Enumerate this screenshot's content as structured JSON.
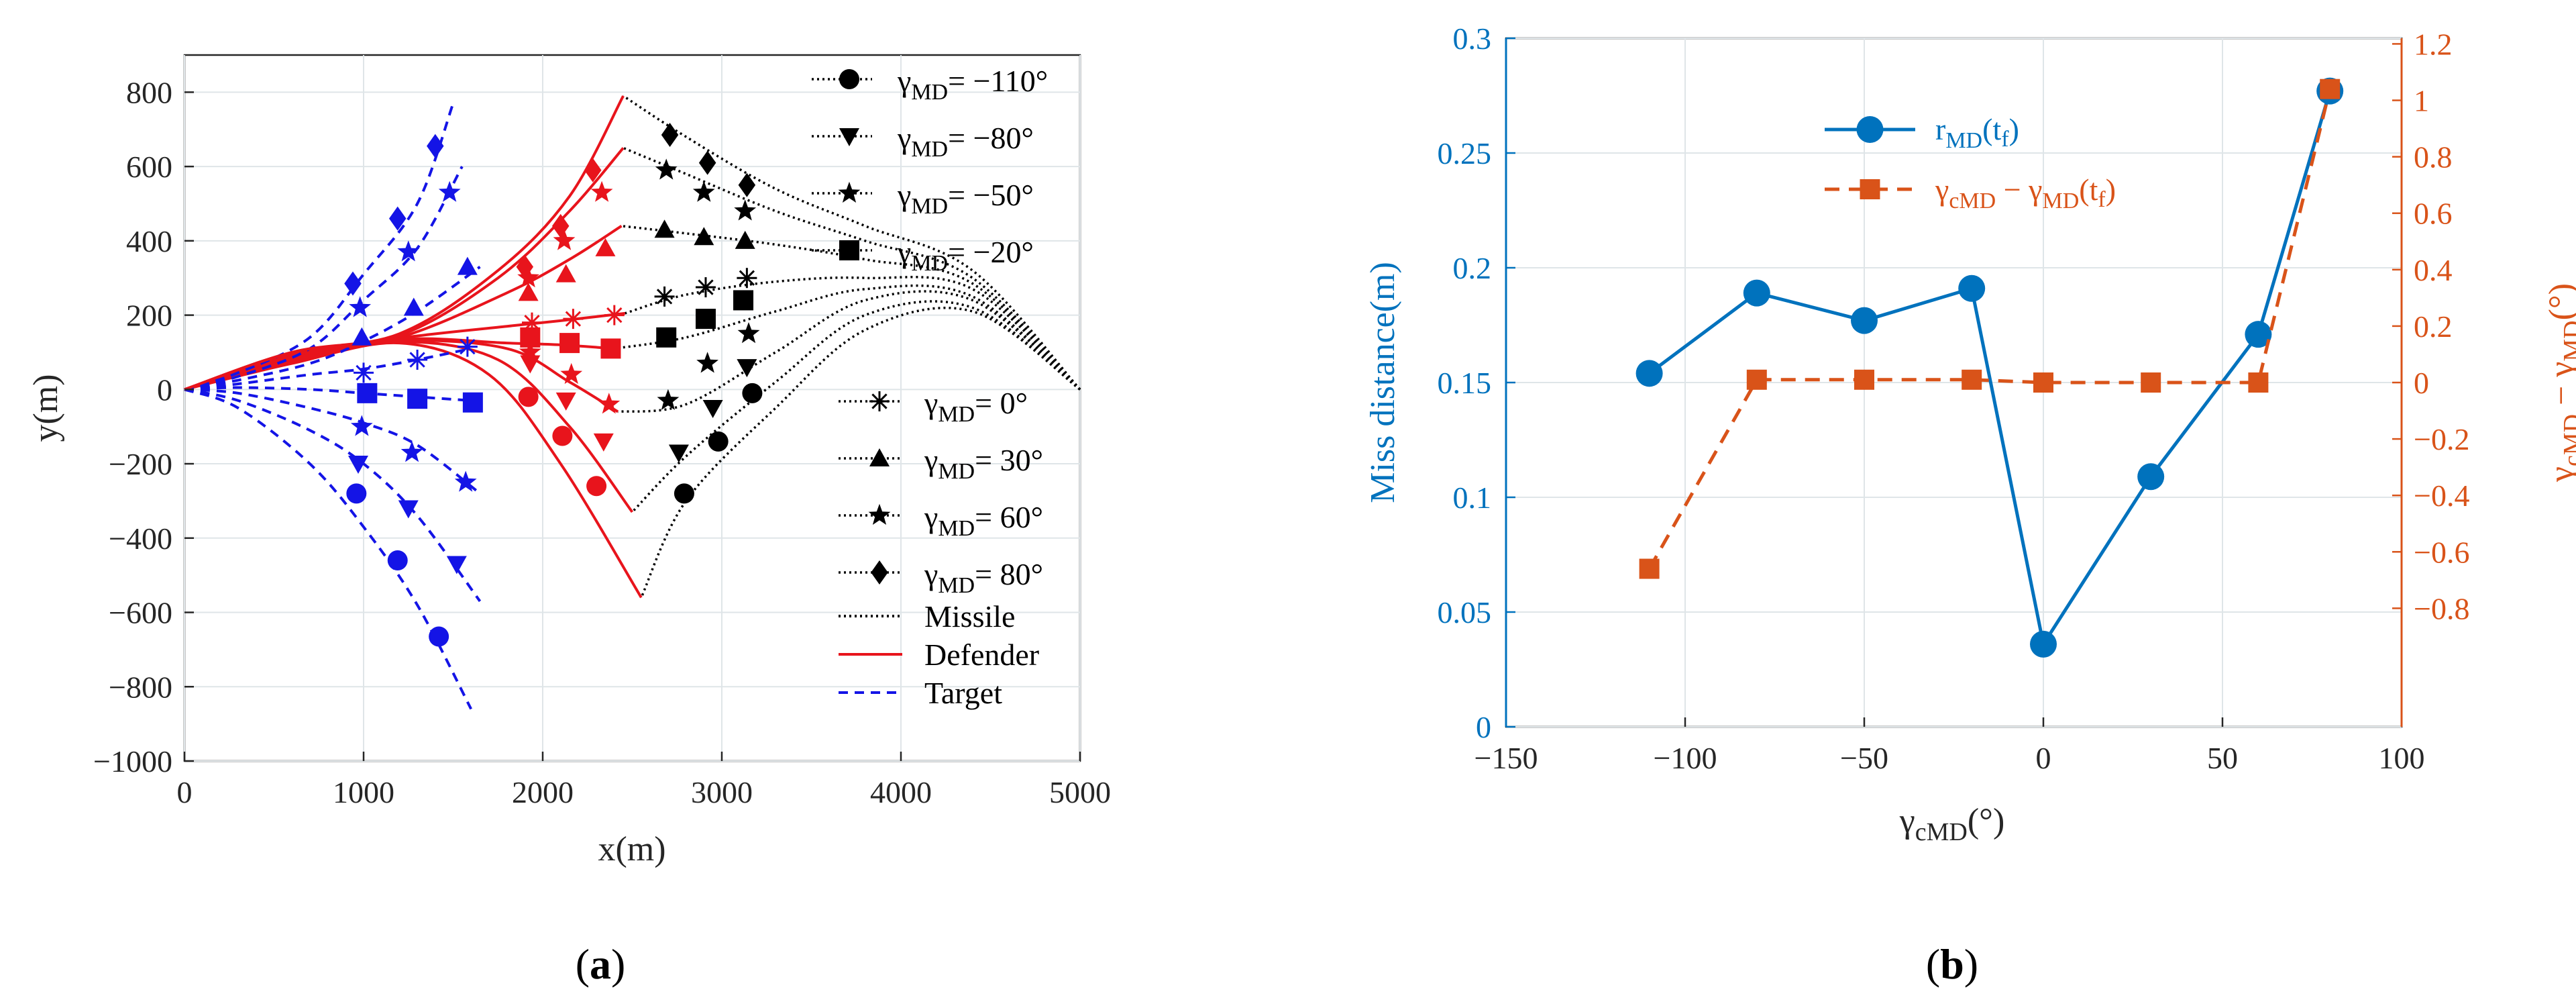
{
  "chart_data": [
    {
      "panel": "(a)",
      "type": "line",
      "xlabel": "x(m)",
      "ylabel": "y(m)",
      "xlim": [
        0,
        5000
      ],
      "ylim": [
        -1000,
        900
      ],
      "xticks": [
        "0",
        "1000",
        "2000",
        "3000",
        "4000",
        "5000"
      ],
      "yticks": [
        "−1000",
        "−800",
        "−600",
        "−400",
        "−200",
        "0",
        "200",
        "400",
        "600",
        "800"
      ],
      "legend": [
        "γMD= −110°",
        "γMD= −80°",
        "γMD= −50°",
        "γMD= −20°",
        "γMD= 0°",
        "γMD= 30°",
        "γMD= 60°",
        "γMD= 80°",
        "Missile",
        "Defender",
        "Target"
      ],
      "series": [
        {
          "name": "γMD= −110°",
          "marker": "circle",
          "missile": [
            [
              5000,
              0
            ],
            [
              4400,
              210
            ],
            [
              3800,
              160
            ],
            [
              3300,
              -50
            ],
            [
              2800,
              -300
            ],
            [
              2550,
              -560
            ]
          ],
          "defender": [
            [
              0,
              0
            ],
            [
              600,
              70
            ],
            [
              1200,
              125
            ],
            [
              1700,
              40
            ],
            [
              2100,
              -200
            ],
            [
              2550,
              -560
            ]
          ],
          "target": [
            [
              0,
              0
            ],
            [
              300,
              -50
            ],
            [
              700,
              -200
            ],
            [
              1000,
              -370
            ],
            [
              1300,
              -580
            ],
            [
              1600,
              -860
            ]
          ],
          "mk_missile": [
            [
              3170,
              -10
            ],
            [
              2980,
              -140
            ],
            [
              2790,
              -280
            ]
          ],
          "mk_defender": [
            [
              1920,
              -20
            ],
            [
              2110,
              -125
            ],
            [
              2300,
              -260
            ]
          ],
          "mk_target": [
            [
              960,
              -280
            ],
            [
              1190,
              -460
            ],
            [
              1420,
              -665
            ]
          ]
        },
        {
          "name": "γMD= −80°",
          "marker": "triangle-down",
          "missile": [
            [
              5000,
              0
            ],
            [
              4400,
              220
            ],
            [
              3800,
              200
            ],
            [
              3300,
              20
            ],
            [
              2800,
              -180
            ],
            [
              2500,
              -330
            ]
          ],
          "defender": [
            [
              0,
              0
            ],
            [
              600,
              75
            ],
            [
              1200,
              128
            ],
            [
              1750,
              80
            ],
            [
              2150,
              -100
            ],
            [
              2500,
              -330
            ]
          ],
          "target": [
            [
              0,
              0
            ],
            [
              300,
              -30
            ],
            [
              700,
              -110
            ],
            [
              1000,
              -200
            ],
            [
              1300,
              -340
            ],
            [
              1650,
              -570
            ]
          ],
          "mk_missile": [
            [
              3140,
              60
            ],
            [
              2950,
              -50
            ],
            [
              2760,
              -170
            ]
          ],
          "mk_defender": [
            [
              1930,
              70
            ],
            [
              2130,
              -30
            ],
            [
              2340,
              -140
            ]
          ],
          "mk_target": [
            [
              970,
              -200
            ],
            [
              1250,
              -320
            ],
            [
              1520,
              -470
            ]
          ]
        },
        {
          "name": "γMD= −50°",
          "marker": "star",
          "missile": [
            [
              5000,
              0
            ],
            [
              4400,
              240
            ],
            [
              3800,
              240
            ],
            [
              3300,
              100
            ],
            [
              2800,
              -40
            ],
            [
              2420,
              -60
            ]
          ],
          "defender": [
            [
              0,
              0
            ],
            [
              600,
              80
            ],
            [
              1200,
              130
            ],
            [
              1800,
              110
            ],
            [
              2150,
              20
            ],
            [
              2420,
              -60
            ]
          ],
          "target": [
            [
              0,
              0
            ],
            [
              300,
              -10
            ],
            [
              700,
              -50
            ],
            [
              1000,
              -90
            ],
            [
              1300,
              -150
            ],
            [
              1650,
              -280
            ]
          ],
          "mk_missile": [
            [
              3150,
              150
            ],
            [
              2920,
              70
            ],
            [
              2700,
              -30
            ]
          ],
          "mk_defender": [
            [
              1930,
              100
            ],
            [
              2160,
              40
            ],
            [
              2370,
              -40
            ]
          ],
          "mk_target": [
            [
              990,
              -100
            ],
            [
              1270,
              -170
            ],
            [
              1570,
              -250
            ]
          ]
        },
        {
          "name": "γMD= −20°",
          "marker": "square",
          "missile": [
            [
              5000,
              0
            ],
            [
              4400,
              250
            ],
            [
              3800,
              270
            ],
            [
              3300,
              210
            ],
            [
              2800,
              140
            ],
            [
              2400,
              110
            ]
          ],
          "defender": [
            [
              0,
              0
            ],
            [
              600,
              85
            ],
            [
              1200,
              135
            ],
            [
              1800,
              125
            ],
            [
              2100,
              120
            ],
            [
              2400,
              110
            ]
          ],
          "target": [
            [
              0,
              0
            ],
            [
              300,
              5
            ],
            [
              700,
              0
            ],
            [
              1000,
              -10
            ],
            [
              1300,
              -20
            ],
            [
              1600,
              -30
            ]
          ],
          "mk_missile": [
            [
              3120,
              240
            ],
            [
              2910,
              190
            ],
            [
              2690,
              140
            ]
          ],
          "mk_defender": [
            [
              1930,
              140
            ],
            [
              2150,
              125
            ],
            [
              2380,
              110
            ]
          ],
          "mk_target": [
            [
              1020,
              -10
            ],
            [
              1300,
              -25
            ],
            [
              1610,
              -35
            ]
          ]
        },
        {
          "name": "γMD= 0°",
          "marker": "asterisk",
          "missile": [
            [
              5000,
              0
            ],
            [
              4400,
              270
            ],
            [
              3800,
              300
            ],
            [
              3300,
              290
            ],
            [
              2800,
              255
            ],
            [
              2460,
              205
            ]
          ],
          "defender": [
            [
              0,
              0
            ],
            [
              600,
              90
            ],
            [
              1200,
              138
            ],
            [
              1800,
              170
            ],
            [
              2100,
              185
            ],
            [
              2460,
              205
            ]
          ],
          "target": [
            [
              0,
              0
            ],
            [
              300,
              15
            ],
            [
              700,
              40
            ],
            [
              1000,
              55
            ],
            [
              1300,
              80
            ],
            [
              1600,
              110
            ]
          ],
          "mk_missile": [
            [
              3140,
              300
            ],
            [
              2910,
              275
            ],
            [
              2680,
              250
            ]
          ],
          "mk_defender": [
            [
              1940,
              180
            ],
            [
              2170,
              190
            ],
            [
              2400,
              200
            ]
          ],
          "mk_target": [
            [
              1000,
              45
            ],
            [
              1300,
              80
            ],
            [
              1580,
              115
            ]
          ]
        },
        {
          "name": "γMD= 30°",
          "marker": "triangle-up",
          "missile": [
            [
              5000,
              0
            ],
            [
              4400,
              285
            ],
            [
              3800,
              350
            ],
            [
              3300,
              390
            ],
            [
              2800,
              420
            ],
            [
              2440,
              440
            ]
          ],
          "defender": [
            [
              0,
              0
            ],
            [
              600,
              95
            ],
            [
              1200,
              140
            ],
            [
              1800,
              260
            ],
            [
              2150,
              350
            ],
            [
              2440,
              440
            ]
          ],
          "target": [
            [
              0,
              0
            ],
            [
              300,
              25
            ],
            [
              700,
              70
            ],
            [
              1000,
              130
            ],
            [
              1300,
              210
            ],
            [
              1650,
              330
            ]
          ],
          "mk_missile": [
            [
              3130,
              400
            ],
            [
              2900,
              410
            ],
            [
              2680,
              430
            ]
          ],
          "mk_defender": [
            [
              1920,
              260
            ],
            [
              2130,
              310
            ],
            [
              2350,
              380
            ]
          ],
          "mk_target": [
            [
              990,
              140
            ],
            [
              1280,
              220
            ],
            [
              1580,
              330
            ]
          ]
        },
        {
          "name": "γMD= 60°",
          "marker": "star",
          "missile": [
            [
              5000,
              0
            ],
            [
              4400,
              300
            ],
            [
              3800,
              400
            ],
            [
              3300,
              480
            ],
            [
              2800,
              580
            ],
            [
              2450,
              650
            ]
          ],
          "defender": [
            [
              0,
              0
            ],
            [
              600,
              100
            ],
            [
              1200,
              145
            ],
            [
              1750,
              300
            ],
            [
              2150,
              480
            ],
            [
              2450,
              650
            ]
          ],
          "target": [
            [
              0,
              0
            ],
            [
              300,
              35
            ],
            [
              700,
              110
            ],
            [
              1000,
              240
            ],
            [
              1300,
              380
            ],
            [
              1550,
              600
            ]
          ],
          "mk_missile": [
            [
              3130,
              480
            ],
            [
              2900,
              530
            ],
            [
              2690,
              590
            ]
          ],
          "mk_defender": [
            [
              1920,
              300
            ],
            [
              2120,
              400
            ],
            [
              2330,
              530
            ]
          ],
          "mk_target": [
            [
              980,
              220
            ],
            [
              1250,
              370
            ],
            [
              1480,
              530
            ]
          ]
        },
        {
          "name": "γMD= 80°",
          "marker": "diamond",
          "missile": [
            [
              5000,
              0
            ],
            [
              4400,
              320
            ],
            [
              3800,
              440
            ],
            [
              3300,
              540
            ],
            [
              2800,
              680
            ],
            [
              2450,
              790
            ]
          ],
          "defender": [
            [
              0,
              0
            ],
            [
              600,
              100
            ],
            [
              1200,
              150
            ],
            [
              1750,
              320
            ],
            [
              2150,
              520
            ],
            [
              2450,
              790
            ]
          ],
          "target": [
            [
              0,
              0
            ],
            [
              300,
              45
            ],
            [
              700,
              140
            ],
            [
              1000,
              310
            ],
            [
              1300,
              500
            ],
            [
              1500,
              770
            ]
          ],
          "mk_missile": [
            [
              3140,
              550
            ],
            [
              2920,
              610
            ],
            [
              2710,
              685
            ]
          ],
          "mk_defender": [
            [
              1900,
              330
            ],
            [
              2100,
              440
            ],
            [
              2280,
              590
            ]
          ],
          "mk_target": [
            [
              940,
              285
            ],
            [
              1190,
              460
            ],
            [
              1400,
              655
            ]
          ]
        }
      ]
    },
    {
      "panel": "(b)",
      "type": "line",
      "xlabel": "γcMD(°)",
      "ylabel_left": "Miss distance(m)",
      "ylabel_right": "γcMD − γMD(°)",
      "xlim": [
        -150,
        100
      ],
      "ylim_left": [
        0,
        0.3
      ],
      "ylim_right": [
        -1.22,
        1.22
      ],
      "xticks": [
        "−150",
        "−100",
        "−50",
        "0",
        "50",
        "100"
      ],
      "yticks_left": [
        "0",
        "0.05",
        "0.1",
        "0.15",
        "0.2",
        "0.25",
        "0.3"
      ],
      "yticks_right": [
        "−0.8",
        "−0.6",
        "−0.4",
        "−0.2",
        "0",
        "0.2",
        "0.4",
        "0.6",
        "0.8",
        "1",
        "1.2"
      ],
      "legend": [
        "rMD(tf)",
        "γcMD − γMD(tf)"
      ],
      "series": [
        {
          "name": "rMD(tf)",
          "axis": "left",
          "color": "#0072BD",
          "marker": "circle",
          "x": [
            -110,
            -80,
            -50,
            -20,
            0,
            30,
            60,
            80
          ],
          "y": [
            0.154,
            0.189,
            0.177,
            0.191,
            0.036,
            0.109,
            0.171,
            0.277
          ]
        },
        {
          "name": "γcMD − γMD(tf)",
          "axis": "right",
          "color": "#D95319",
          "marker": "square",
          "x": [
            -110,
            -80,
            -50,
            -20,
            0,
            30,
            60,
            80
          ],
          "y": [
            -0.66,
            0.01,
            0.01,
            0.01,
            0.0,
            0.0,
            0.0,
            1.04
          ]
        }
      ]
    }
  ],
  "captions": {
    "a_label": "a",
    "b_label": "b",
    "paren_open": "(",
    "paren_close": ")"
  },
  "colors": {
    "missile": "#000000",
    "defender": "#E8141C",
    "target": "#1414E6",
    "blue": "#0072BD",
    "orange": "#D95319"
  }
}
